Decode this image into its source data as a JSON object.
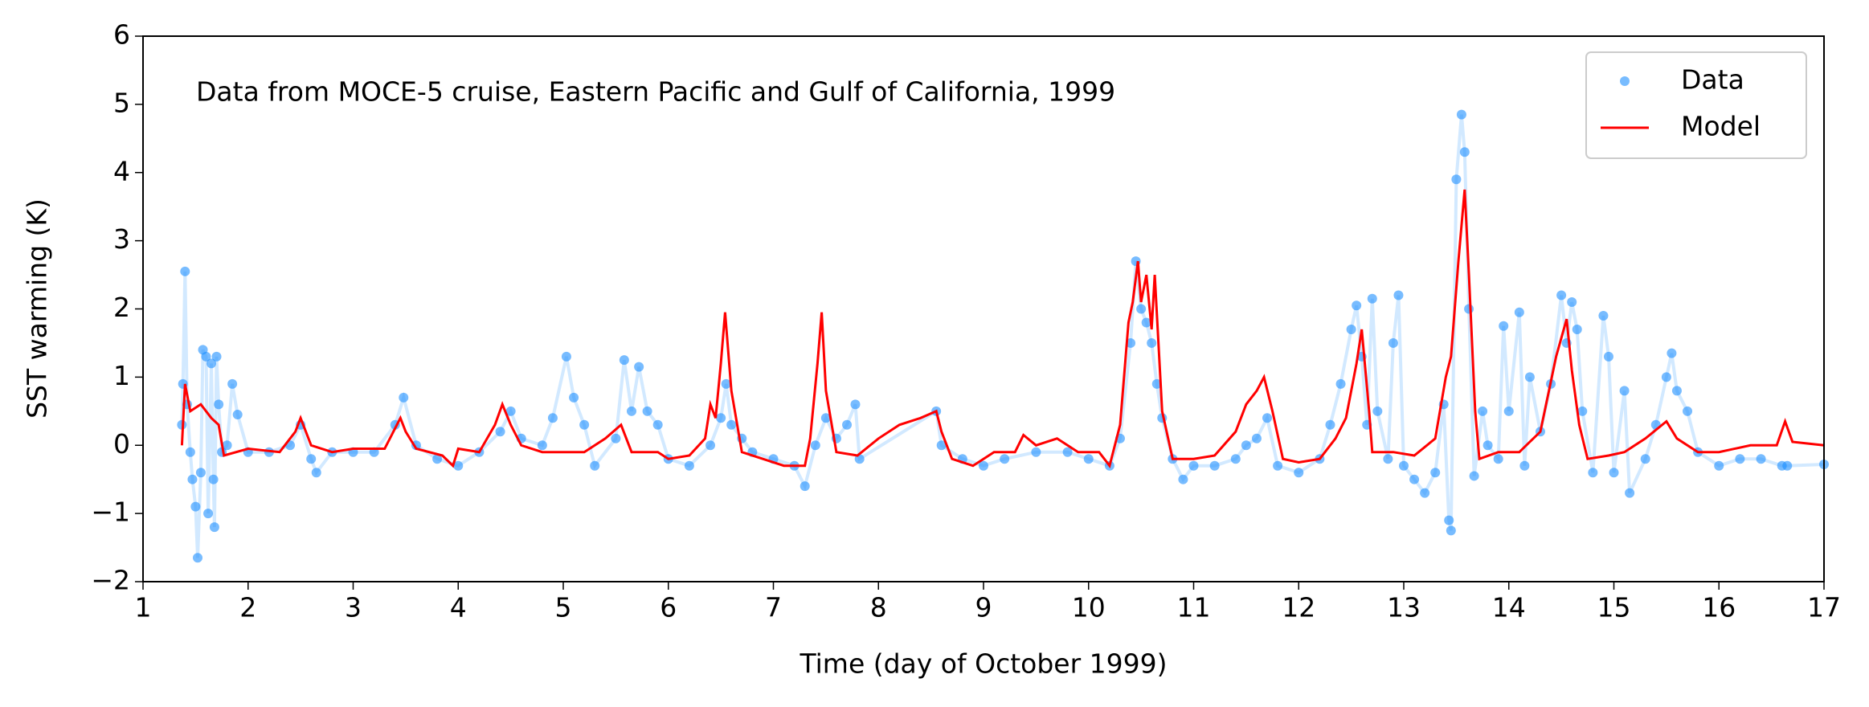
{
  "chart_data": {
    "type": "line",
    "annotation": "Data from MOCE-5 cruise, Eastern Pacific and Gulf of California, 1999",
    "xlabel": "Time (day of October 1999)",
    "ylabel": "SST warming (K)",
    "xlim": [
      1,
      17
    ],
    "xticks": [
      1,
      2,
      3,
      4,
      5,
      6,
      7,
      8,
      9,
      10,
      11,
      12,
      13,
      14,
      15,
      16,
      17
    ],
    "ylim": [
      -2,
      6
    ],
    "yticks": [
      {
        "value": -2,
        "label": "−2"
      },
      {
        "value": -1,
        "label": "−1"
      },
      0,
      1,
      2,
      3,
      4,
      5,
      6
    ],
    "legend": "upper right",
    "series": [
      {
        "name": "Data",
        "color": "#1e90ff",
        "marker": "o",
        "x": [
          1.37,
          1.38,
          1.4,
          1.42,
          1.45,
          1.47,
          1.5,
          1.52,
          1.55,
          1.57,
          1.6,
          1.62,
          1.65,
          1.67,
          1.68,
          1.7,
          1.72,
          1.75,
          1.8,
          1.85,
          1.9,
          2.0,
          2.2,
          2.4,
          2.5,
          2.6,
          2.65,
          2.8,
          3.0,
          3.2,
          3.4,
          3.48,
          3.6,
          3.8,
          4.0,
          4.2,
          4.4,
          4.5,
          4.6,
          4.8,
          4.9,
          5.03,
          5.1,
          5.2,
          5.3,
          5.5,
          5.58,
          5.65,
          5.72,
          5.8,
          5.9,
          6.0,
          6.2,
          6.4,
          6.5,
          6.55,
          6.6,
          6.7,
          6.8,
          7.0,
          7.2,
          7.3,
          7.4,
          7.5,
          7.6,
          7.7,
          7.78,
          7.82,
          8.55,
          8.6,
          8.8,
          9.0,
          9.2,
          9.5,
          9.8,
          10.0,
          10.2,
          10.3,
          10.4,
          10.45,
          10.5,
          10.55,
          10.6,
          10.65,
          10.7,
          10.8,
          10.9,
          11.0,
          11.2,
          11.4,
          11.5,
          11.6,
          11.7,
          11.8,
          12.0,
          12.2,
          12.3,
          12.4,
          12.5,
          12.55,
          12.6,
          12.65,
          12.7,
          12.75,
          12.85,
          12.9,
          12.95,
          13.0,
          13.1,
          13.2,
          13.3,
          13.38,
          13.43,
          13.45,
          13.5,
          13.55,
          13.58,
          13.62,
          13.67,
          13.75,
          13.8,
          13.9,
          13.95,
          14.0,
          14.1,
          14.15,
          14.2,
          14.3,
          14.4,
          14.5,
          14.55,
          14.6,
          14.65,
          14.7,
          14.8,
          14.9,
          14.95,
          15.0,
          15.1,
          15.15,
          15.3,
          15.4,
          15.5,
          15.55,
          15.6,
          15.7,
          15.8,
          16.0,
          16.2,
          16.4,
          16.6,
          16.65,
          17.0
        ],
        "values": [
          0.3,
          0.9,
          2.55,
          0.6,
          -0.1,
          -0.5,
          -0.9,
          -1.65,
          -0.4,
          1.4,
          1.3,
          -1.0,
          1.2,
          -0.5,
          -1.2,
          1.3,
          0.6,
          -0.1,
          0.0,
          0.9,
          0.45,
          -0.1,
          -0.1,
          0.0,
          0.3,
          -0.2,
          -0.4,
          -0.1,
          -0.1,
          -0.1,
          0.3,
          0.7,
          0.0,
          -0.2,
          -0.3,
          -0.1,
          0.2,
          0.5,
          0.1,
          0.0,
          0.4,
          1.3,
          0.7,
          0.3,
          -0.3,
          0.1,
          1.25,
          0.5,
          1.15,
          0.5,
          0.3,
          -0.2,
          -0.3,
          0.0,
          0.4,
          0.9,
          0.3,
          0.1,
          -0.1,
          -0.2,
          -0.3,
          -0.6,
          0.0,
          0.4,
          0.1,
          0.3,
          0.6,
          -0.2,
          0.5,
          0.0,
          -0.2,
          -0.3,
          -0.2,
          -0.1,
          -0.1,
          -0.2,
          -0.3,
          0.1,
          1.5,
          2.7,
          2.0,
          1.8,
          1.5,
          0.9,
          0.4,
          -0.2,
          -0.5,
          -0.3,
          -0.3,
          -0.2,
          0.0,
          0.1,
          0.4,
          -0.3,
          -0.4,
          -0.2,
          0.3,
          0.9,
          1.7,
          2.05,
          1.3,
          0.3,
          2.15,
          0.5,
          -0.2,
          1.5,
          2.2,
          -0.3,
          -0.5,
          -0.7,
          -0.4,
          0.6,
          -1.1,
          -1.25,
          3.9,
          4.85,
          4.3,
          2.0,
          -0.45,
          0.5,
          0.0,
          -0.2,
          1.75,
          0.5,
          1.95,
          -0.3,
          1.0,
          0.2,
          0.9,
          2.2,
          1.5,
          2.1,
          1.7,
          0.5,
          -0.4,
          1.9,
          1.3,
          -0.4,
          0.8,
          -0.7,
          -0.2,
          0.3,
          1.0,
          1.35,
          0.8,
          0.5,
          -0.1,
          -0.3,
          -0.2,
          -0.2,
          -0.3,
          -0.3,
          -0.28
        ]
      },
      {
        "name": "Model",
        "color": "#ff0000",
        "x": [
          1.37,
          1.4,
          1.45,
          1.55,
          1.65,
          1.72,
          1.77,
          2.0,
          2.3,
          2.45,
          2.5,
          2.6,
          2.8,
          3.0,
          3.3,
          3.45,
          3.5,
          3.6,
          3.85,
          3.95,
          4.0,
          4.2,
          4.35,
          4.42,
          4.5,
          4.6,
          4.8,
          5.0,
          5.2,
          5.4,
          5.55,
          5.65,
          5.9,
          6.0,
          6.2,
          6.35,
          6.4,
          6.45,
          6.5,
          6.54,
          6.6,
          6.7,
          6.9,
          7.1,
          7.3,
          7.35,
          7.42,
          7.46,
          7.5,
          7.6,
          7.8,
          8.0,
          8.2,
          8.4,
          8.55,
          8.6,
          8.7,
          8.9,
          9.1,
          9.3,
          9.38,
          9.5,
          9.7,
          9.9,
          10.1,
          10.2,
          10.3,
          10.38,
          10.42,
          10.47,
          10.5,
          10.55,
          10.6,
          10.63,
          10.7,
          10.8,
          11.0,
          11.2,
          11.4,
          11.5,
          11.6,
          11.67,
          11.75,
          11.85,
          12.0,
          12.2,
          12.35,
          12.45,
          12.55,
          12.6,
          12.67,
          12.7,
          12.9,
          13.1,
          13.3,
          13.4,
          13.45,
          13.52,
          13.58,
          13.62,
          13.68,
          13.72,
          13.9,
          14.1,
          14.3,
          14.45,
          14.55,
          14.6,
          14.67,
          14.75,
          14.95,
          15.1,
          15.3,
          15.5,
          15.6,
          15.8,
          16.0,
          16.3,
          16.55,
          16.63,
          16.7,
          17.0
        ],
        "values": [
          0.0,
          0.9,
          0.5,
          0.6,
          0.4,
          0.3,
          -0.15,
          -0.05,
          -0.1,
          0.2,
          0.4,
          0.0,
          -0.1,
          -0.05,
          -0.05,
          0.4,
          0.2,
          -0.05,
          -0.15,
          -0.3,
          -0.05,
          -0.1,
          0.3,
          0.6,
          0.3,
          0.0,
          -0.1,
          -0.1,
          -0.1,
          0.1,
          0.3,
          -0.1,
          -0.1,
          -0.2,
          -0.15,
          0.1,
          0.6,
          0.4,
          1.2,
          1.95,
          0.8,
          -0.1,
          -0.2,
          -0.3,
          -0.3,
          0.1,
          1.2,
          1.95,
          0.8,
          -0.1,
          -0.15,
          0.1,
          0.3,
          0.4,
          0.5,
          0.2,
          -0.2,
          -0.3,
          -0.1,
          -0.1,
          0.15,
          0.0,
          0.1,
          -0.1,
          -0.1,
          -0.3,
          0.3,
          1.8,
          2.1,
          2.7,
          2.1,
          2.5,
          1.7,
          2.5,
          0.5,
          -0.2,
          -0.2,
          -0.15,
          0.2,
          0.6,
          0.8,
          1.0,
          0.5,
          -0.2,
          -0.25,
          -0.2,
          0.1,
          0.4,
          1.2,
          1.7,
          0.5,
          -0.1,
          -0.1,
          -0.15,
          0.1,
          1.0,
          1.3,
          2.7,
          3.75,
          2.5,
          0.5,
          -0.2,
          -0.1,
          -0.1,
          0.2,
          1.3,
          1.85,
          1.1,
          0.3,
          -0.2,
          -0.15,
          -0.1,
          0.1,
          0.35,
          0.1,
          -0.1,
          -0.1,
          0.0,
          0.0,
          0.35,
          0.05,
          0.0
        ]
      }
    ]
  }
}
